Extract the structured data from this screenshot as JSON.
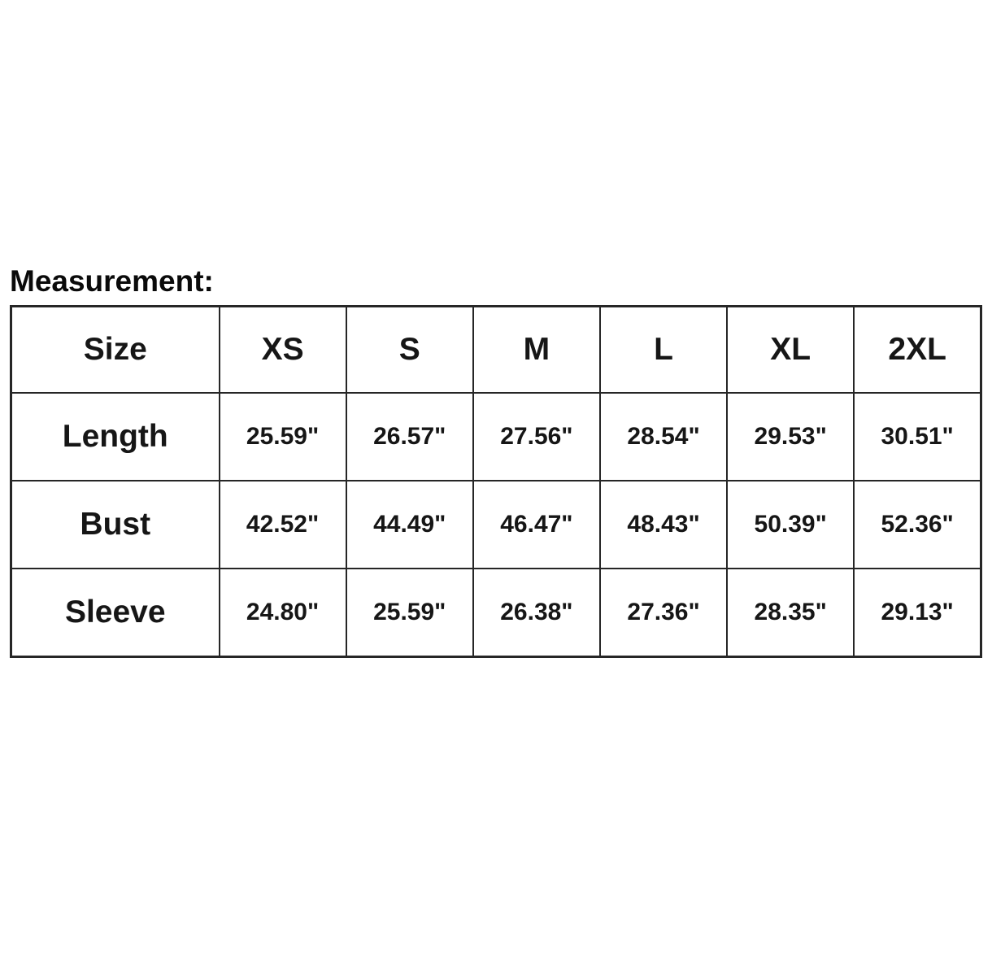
{
  "title": "Measurement:",
  "table": {
    "columns": [
      "Size",
      "XS",
      "S",
      "M",
      "L",
      "XL",
      "2XL"
    ],
    "rows": [
      {
        "label": "Length",
        "values": [
          "25.59\"",
          "26.57\"",
          "27.56\"",
          "28.54\"",
          "29.53\"",
          "30.51\""
        ]
      },
      {
        "label": "Bust",
        "values": [
          "42.52\"",
          "44.49\"",
          "46.47\"",
          "48.43\"",
          "50.39\"",
          "52.36\""
        ]
      },
      {
        "label": "Sleeve",
        "values": [
          "24.80\"",
          "25.59\"",
          "26.38\"",
          "27.36\"",
          "28.35\"",
          "29.13\""
        ]
      }
    ]
  },
  "colors": {
    "background": "#ffffff",
    "border": "#262626",
    "text": "#141414"
  }
}
